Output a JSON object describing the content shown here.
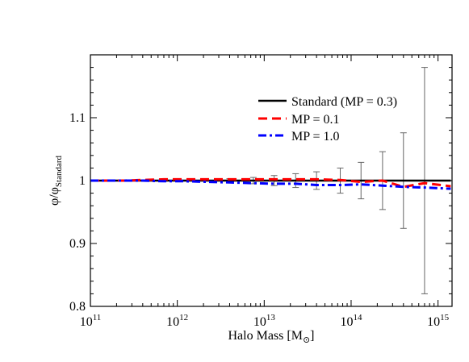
{
  "chart_data": {
    "type": "line",
    "xlabel": "Halo Mass [M",
    "xlabel_sub": "⊙",
    "xlabel_close": "]",
    "ylabel": "φ/φ",
    "ylabel_sub": "Standard",
    "x_scale": "log",
    "xlim": [
      100000000000.0,
      1450000000000000.0
    ],
    "ylim": [
      0.8,
      1.2
    ],
    "x_ticks": [
      {
        "value": 100000000000.0,
        "base": "10",
        "exp": "11"
      },
      {
        "value": 1000000000000.0,
        "base": "10",
        "exp": "12"
      },
      {
        "value": 10000000000000.0,
        "base": "10",
        "exp": "13"
      },
      {
        "value": 100000000000000.0,
        "base": "10",
        "exp": "14"
      },
      {
        "value": 1000000000000000.0,
        "base": "10",
        "exp": "15"
      }
    ],
    "y_ticks": [
      {
        "value": 0.8,
        "label": "0.8"
      },
      {
        "value": 0.9,
        "label": "0.9"
      },
      {
        "value": 1.0,
        "label": "1"
      },
      {
        "value": 1.1,
        "label": "1.1"
      }
    ],
    "grid": false,
    "legend_position": "top-right",
    "series": [
      {
        "name": "Standard (MP = 0.3)",
        "color": "#000000",
        "style": "solid",
        "x": [
          100000000000.0,
          1400000000000000.0
        ],
        "y": [
          1.0,
          1.0
        ]
      },
      {
        "name": "MP = 0.1",
        "color": "#ff0000",
        "style": "dashed",
        "x": [
          100000000000.0,
          250000000000.0,
          400000000000.0,
          700000000000.0,
          1200000000000.0,
          2300000000000.0,
          4000000000000.0,
          7000000000000.0,
          13000000000000.0,
          23000000000000.0,
          40000000000000.0,
          75000000000000.0,
          130000000000000.0,
          230000000000000.0,
          400000000000000.0,
          700000000000000.0,
          1400000000000000.0
        ],
        "y": [
          1.0,
          1.0,
          1.001,
          1.002,
          1.002,
          1.002,
          1.002,
          1.002,
          1.002,
          1.002,
          1.002,
          1.001,
          0.998,
          1.0,
          0.99,
          0.996,
          0.991
        ]
      },
      {
        "name": "MP = 1.0",
        "color": "#0000ff",
        "style": "dash-dot",
        "x": [
          100000000000.0,
          250000000000.0,
          400000000000.0,
          700000000000.0,
          1200000000000.0,
          2300000000000.0,
          4000000000000.0,
          7000000000000.0,
          13000000000000.0,
          23000000000000.0,
          40000000000000.0,
          75000000000000.0,
          130000000000000.0,
          230000000000000.0,
          400000000000000.0,
          700000000000000.0,
          1400000000000000.0
        ],
        "y": [
          1.0,
          1.0,
          1.0,
          0.999,
          0.999,
          0.998,
          0.997,
          0.996,
          0.995,
          0.995,
          0.993,
          0.993,
          0.994,
          0.992,
          0.99,
          0.989,
          0.987
        ]
      }
    ],
    "error_bars": {
      "color": "#666666",
      "points": [
        {
          "x": 4000000000000.0,
          "y": 1.0,
          "lo": 0.997,
          "hi": 1.003
        },
        {
          "x": 7500000000000.0,
          "y": 1.0,
          "lo": 0.995,
          "hi": 1.005
        },
        {
          "x": 13000000000000.0,
          "y": 1.0,
          "lo": 0.992,
          "hi": 1.008
        },
        {
          "x": 23000000000000.0,
          "y": 1.0,
          "lo": 0.989,
          "hi": 1.011
        },
        {
          "x": 40000000000000.0,
          "y": 1.0,
          "lo": 0.986,
          "hi": 1.014
        },
        {
          "x": 75000000000000.0,
          "y": 1.0,
          "lo": 0.98,
          "hi": 1.02
        },
        {
          "x": 130000000000000.0,
          "y": 1.0,
          "lo": 0.971,
          "hi": 1.029
        },
        {
          "x": 230000000000000.0,
          "y": 1.0,
          "lo": 0.954,
          "hi": 1.046
        },
        {
          "x": 400000000000000.0,
          "y": 1.0,
          "lo": 0.924,
          "hi": 1.076
        },
        {
          "x": 700000000000000.0,
          "y": 1.0,
          "lo": 0.82,
          "hi": 1.18
        }
      ]
    }
  }
}
